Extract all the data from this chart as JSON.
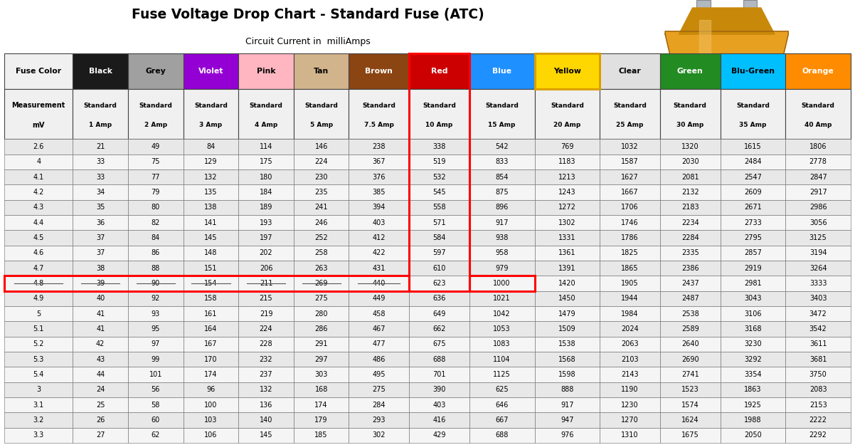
{
  "title": "Fuse Voltage Drop Chart - Standard Fuse (ATC)",
  "subtitle": "Circuit Current in  milliAmps",
  "header_row1": [
    "Fuse Color",
    "Black",
    "Grey",
    "Violet",
    "Pink",
    "Tan",
    "Brown",
    "Red",
    "Blue",
    "Yellow",
    "Clear",
    "Green",
    "Blu-Green",
    "Orange"
  ],
  "header_row2_line1": [
    "Measurement",
    "Standard",
    "Standard",
    "Standard",
    "Standard",
    "Standard",
    "Standard",
    "Standard",
    "Standard",
    "Standard",
    "Standard",
    "Standard",
    "Standard",
    "Standard"
  ],
  "header_row2_line2": [
    "mV",
    "1 Amp",
    "2 Amp",
    "3 Amp",
    "4 Amp",
    "5 Amp",
    "7.5 Amp",
    "10 Amp",
    "15 Amp",
    "20 Amp",
    "25 Amp",
    "30 Amp",
    "35 Amp",
    "40 Amp"
  ],
  "col_bg_colors": [
    "#f0f0f0",
    "#1a1a1a",
    "#a0a0a0",
    "#9400D3",
    "#FFB6C1",
    "#D2B48C",
    "#8B4513",
    "#CC0000",
    "#1E90FF",
    "#FFD700",
    "#e0e0e0",
    "#228B22",
    "#00BFFF",
    "#FF8C00"
  ],
  "col_text_colors": [
    "#000000",
    "#ffffff",
    "#000000",
    "#ffffff",
    "#000000",
    "#000000",
    "#ffffff",
    "#ffffff",
    "#ffffff",
    "#000000",
    "#000000",
    "#ffffff",
    "#000000",
    "#ffffff"
  ],
  "data_rows": [
    [
      "2.6",
      "21",
      "49",
      "84",
      "114",
      "146",
      "238",
      "338",
      "542",
      "769",
      "1032",
      "1320",
      "1615",
      "1806"
    ],
    [
      "4",
      "33",
      "75",
      "129",
      "175",
      "224",
      "367",
      "519",
      "833",
      "1183",
      "1587",
      "2030",
      "2484",
      "2778"
    ],
    [
      "4.1",
      "33",
      "77",
      "132",
      "180",
      "230",
      "376",
      "532",
      "854",
      "1213",
      "1627",
      "2081",
      "2547",
      "2847"
    ],
    [
      "4.2",
      "34",
      "79",
      "135",
      "184",
      "235",
      "385",
      "545",
      "875",
      "1243",
      "1667",
      "2132",
      "2609",
      "2917"
    ],
    [
      "4.3",
      "35",
      "80",
      "138",
      "189",
      "241",
      "394",
      "558",
      "896",
      "1272",
      "1706",
      "2183",
      "2671",
      "2986"
    ],
    [
      "4.4",
      "36",
      "82",
      "141",
      "193",
      "246",
      "403",
      "571",
      "917",
      "1302",
      "1746",
      "2234",
      "2733",
      "3056"
    ],
    [
      "4.5",
      "37",
      "84",
      "145",
      "197",
      "252",
      "412",
      "584",
      "938",
      "1331",
      "1786",
      "2284",
      "2795",
      "3125"
    ],
    [
      "4.6",
      "37",
      "86",
      "148",
      "202",
      "258",
      "422",
      "597",
      "958",
      "1361",
      "1825",
      "2335",
      "2857",
      "3194"
    ],
    [
      "4.7",
      "38",
      "88",
      "151",
      "206",
      "263",
      "431",
      "610",
      "979",
      "1391",
      "1865",
      "2386",
      "2919",
      "3264"
    ],
    [
      "4.8",
      "39",
      "90",
      "154",
      "211",
      "269",
      "440",
      "623",
      "1000",
      "1420",
      "1905",
      "2437",
      "2981",
      "3333"
    ],
    [
      "4.9",
      "40",
      "92",
      "158",
      "215",
      "275",
      "449",
      "636",
      "1021",
      "1450",
      "1944",
      "2487",
      "3043",
      "3403"
    ],
    [
      "5",
      "41",
      "93",
      "161",
      "219",
      "280",
      "458",
      "649",
      "1042",
      "1479",
      "1984",
      "2538",
      "3106",
      "3472"
    ],
    [
      "5.1",
      "41",
      "95",
      "164",
      "224",
      "286",
      "467",
      "662",
      "1053",
      "1509",
      "2024",
      "2589",
      "3168",
      "3542"
    ],
    [
      "5.2",
      "42",
      "97",
      "167",
      "228",
      "291",
      "477",
      "675",
      "1083",
      "1538",
      "2063",
      "2640",
      "3230",
      "3611"
    ],
    [
      "5.3",
      "43",
      "99",
      "170",
      "232",
      "297",
      "486",
      "688",
      "1104",
      "1568",
      "2103",
      "2690",
      "3292",
      "3681"
    ],
    [
      "5.4",
      "44",
      "101",
      "174",
      "237",
      "303",
      "495",
      "701",
      "1125",
      "1598",
      "2143",
      "2741",
      "3354",
      "3750"
    ],
    [
      "3",
      "24",
      "56",
      "96",
      "132",
      "168",
      "275",
      "390",
      "625",
      "888",
      "1190",
      "1523",
      "1863",
      "2083"
    ],
    [
      "3.1",
      "25",
      "58",
      "100",
      "136",
      "174",
      "284",
      "403",
      "646",
      "917",
      "1230",
      "1574",
      "1925",
      "2153"
    ],
    [
      "3.2",
      "26",
      "60",
      "103",
      "140",
      "179",
      "293",
      "416",
      "667",
      "947",
      "1270",
      "1624",
      "1988",
      "2222"
    ],
    [
      "3.3",
      "27",
      "62",
      "106",
      "145",
      "185",
      "302",
      "429",
      "688",
      "976",
      "1310",
      "1675",
      "2050",
      "2292"
    ]
  ],
  "highlight_row_idx": 9,
  "strike_cols": [
    0,
    1,
    2,
    3,
    4,
    5,
    6
  ],
  "red_col_idx": 7,
  "blue_col_idx": 8,
  "yellow_col_idx": 9,
  "row_bg_even": "#e8e8e8",
  "row_bg_odd": "#f5f5f5"
}
